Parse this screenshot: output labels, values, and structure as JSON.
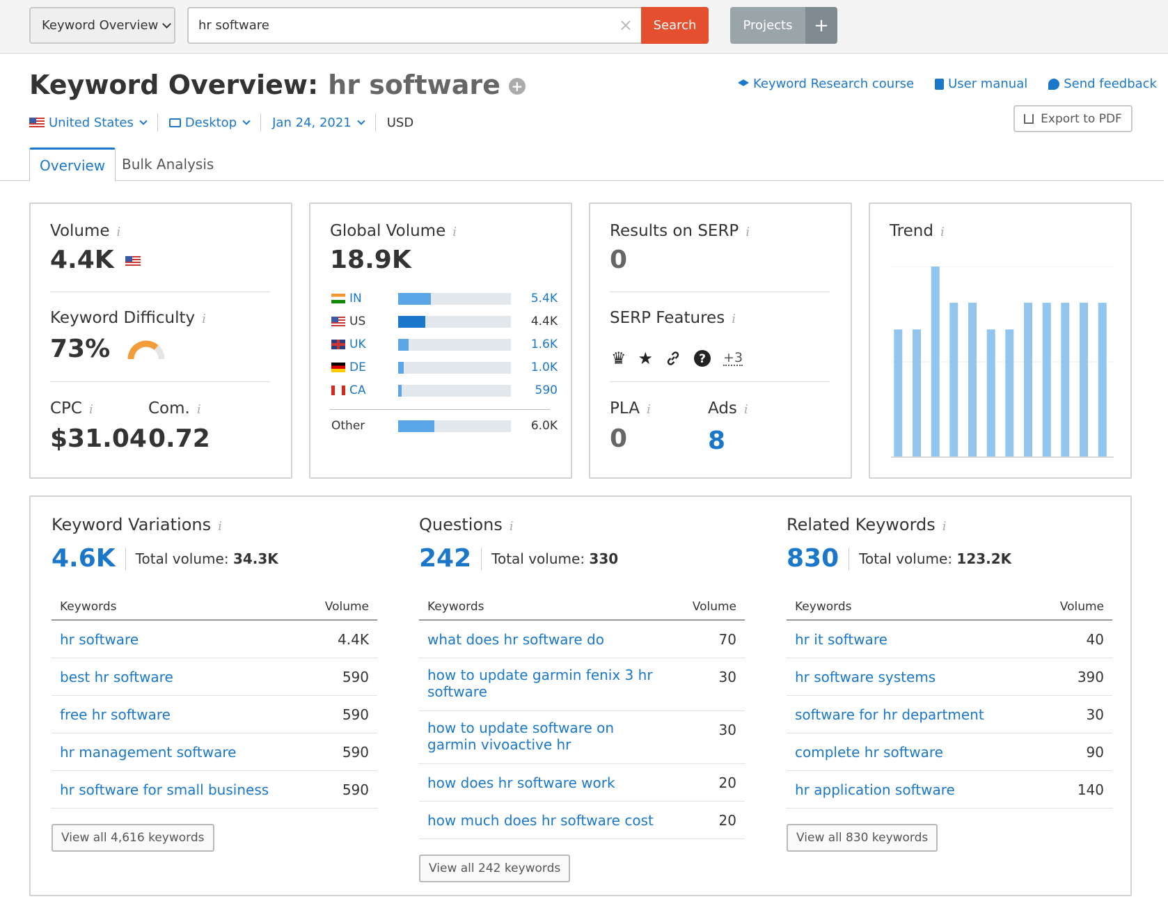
{
  "topbar": {
    "tool_select": "Keyword Overview",
    "search_value": "hr software",
    "search_button": "Search",
    "projects_button": "Projects",
    "add_button": "+"
  },
  "header": {
    "title": "Keyword Overview:",
    "keyword": "hr software",
    "links": [
      "Keyword Research course",
      "User manual",
      "Send feedback"
    ],
    "export": "Export to PDF",
    "filters": {
      "country": "United States",
      "device": "Desktop",
      "date": "Jan 24, 2021",
      "currency": "USD"
    }
  },
  "tabs": [
    "Overview",
    "Bulk Analysis"
  ],
  "volume_card": {
    "volume_label": "Volume",
    "volume_value": "4.4K",
    "kd_label": "Keyword Difficulty",
    "kd_value": "73%",
    "kd_fraction": 0.73,
    "cpc_label": "CPC",
    "cpc_value": "$31.04",
    "com_label": "Com.",
    "com_value": "0.72"
  },
  "global_volume": {
    "label": "Global Volume",
    "value": "18.9K",
    "countries": [
      {
        "code": "IN",
        "value": "5.4K",
        "share": 0.29
      },
      {
        "code": "US",
        "value": "4.4K",
        "share": 0.24
      },
      {
        "code": "UK",
        "value": "1.6K",
        "share": 0.09
      },
      {
        "code": "DE",
        "value": "1.0K",
        "share": 0.05
      },
      {
        "code": "CA",
        "value": "590",
        "share": 0.03
      }
    ],
    "other": {
      "code": "Other",
      "value": "6.0K",
      "share": 0.32
    }
  },
  "serp_card": {
    "results_label": "Results on SERP",
    "results_value": "0",
    "features_label": "SERP Features",
    "features_icons": [
      "crown-icon",
      "star-icon",
      "link-icon",
      "question-icon"
    ],
    "features_more": "+3",
    "pla_label": "PLA",
    "pla_value": "0",
    "ads_label": "Ads",
    "ads_value": "8"
  },
  "trend_card": {
    "label": "Trend"
  },
  "chart_data": {
    "type": "bar",
    "title": "Trend",
    "values": [
      0.67,
      0.67,
      1.0,
      0.81,
      0.81,
      0.67,
      0.67,
      0.81,
      0.81,
      0.81,
      0.81,
      0.81
    ],
    "ylim": [
      0,
      1
    ],
    "grid": true
  },
  "columns": [
    {
      "title": "Keyword Variations",
      "count": "4.6K",
      "total_label": "Total volume:",
      "total_value": "34.3K",
      "head_keywords": "Keywords",
      "head_volume": "Volume",
      "rows": [
        {
          "keyword": "hr software",
          "volume": "4.4K"
        },
        {
          "keyword": "best hr software",
          "volume": "590"
        },
        {
          "keyword": "free hr software",
          "volume": "590"
        },
        {
          "keyword": "hr management software",
          "volume": "590"
        },
        {
          "keyword": "hr software for small business",
          "volume": "590"
        }
      ],
      "view_all": "View all 4,616 keywords"
    },
    {
      "title": "Questions",
      "count": "242",
      "total_label": "Total volume:",
      "total_value": "330",
      "head_keywords": "Keywords",
      "head_volume": "Volume",
      "rows": [
        {
          "keyword": "what does hr software do",
          "volume": "70"
        },
        {
          "keyword": "how to update garmin fenix 3 hr software",
          "volume": "30"
        },
        {
          "keyword": "how to update software on garmin vivoactive hr",
          "volume": "30"
        },
        {
          "keyword": "how does hr software work",
          "volume": "20"
        },
        {
          "keyword": "how much does hr software cost",
          "volume": "20"
        }
      ],
      "view_all": "View all 242 keywords"
    },
    {
      "title": "Related Keywords",
      "count": "830",
      "total_label": "Total volume:",
      "total_value": "123.2K",
      "head_keywords": "Keywords",
      "head_volume": "Volume",
      "rows": [
        {
          "keyword": "hr it software",
          "volume": "40"
        },
        {
          "keyword": "hr software systems",
          "volume": "390"
        },
        {
          "keyword": "software for hr department",
          "volume": "30"
        },
        {
          "keyword": "complete hr software",
          "volume": "90"
        },
        {
          "keyword": "hr application software",
          "volume": "140"
        }
      ],
      "view_all": "View all 830 keywords"
    }
  ],
  "colors": {
    "accent": "#1a77c9",
    "search_button": "#e4502f",
    "kd_gauge": "#f39c3a",
    "trend_bar": "#91c5ee"
  }
}
